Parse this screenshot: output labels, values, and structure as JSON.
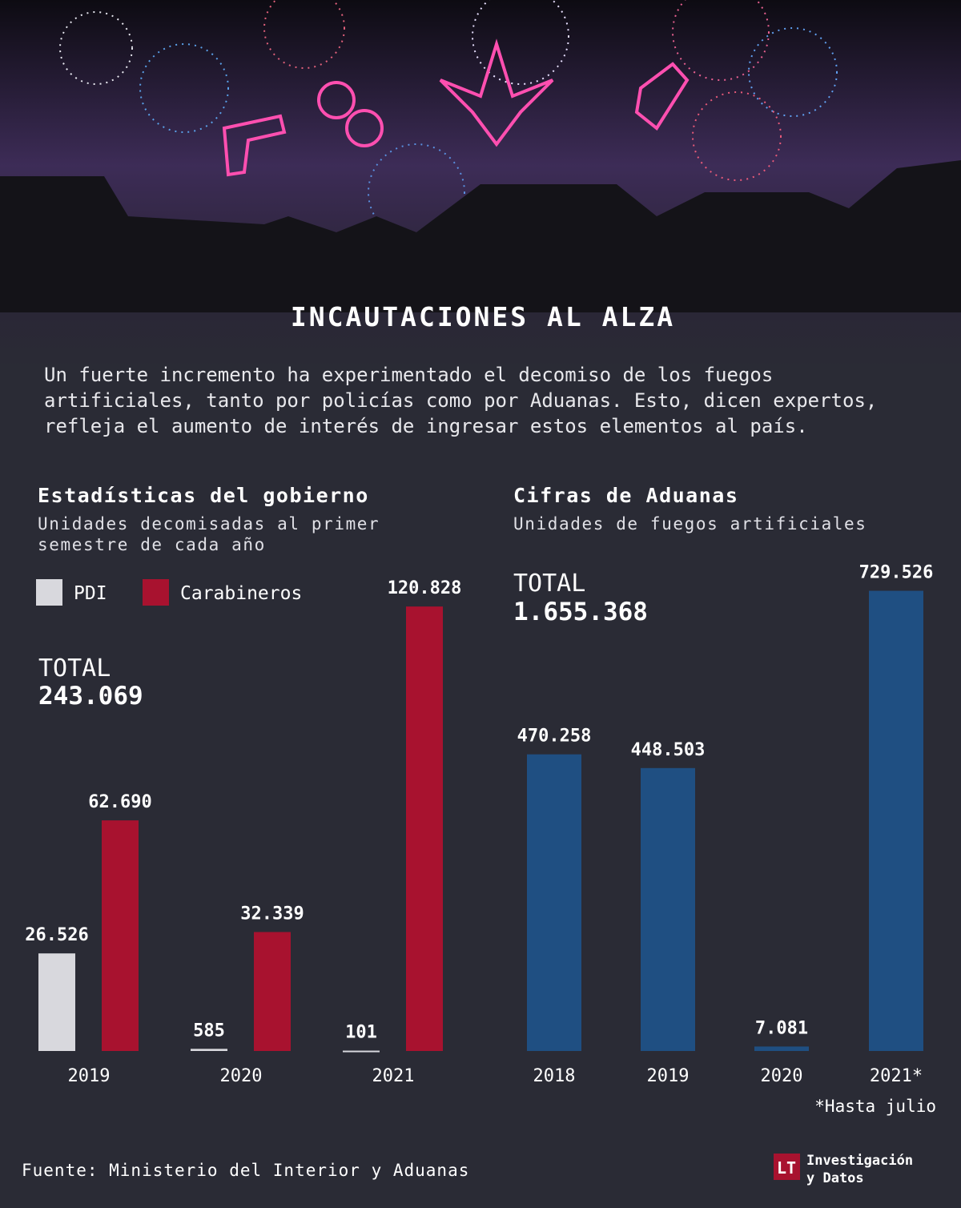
{
  "header": {
    "title": "INCAUTACIONES AL ALZA",
    "intro": "Un fuerte incremento ha experimentado el decomiso de los fuegos artificiales, tanto por policías como por Aduanas. Esto, dicen expertos, refleja el aumento de interés de ingresar estos elementos al país."
  },
  "chart_data": [
    {
      "type": "bar",
      "title": "Estadísticas del gobierno",
      "subtitle": "Unidades decomisadas al primer semestre de cada año",
      "total_label": "TOTAL",
      "total": "243.069",
      "categories": [
        "2019",
        "2020",
        "2021"
      ],
      "series": [
        {
          "name": "PDI",
          "color": "#d8d8dd",
          "values": [
            26526,
            585,
            101
          ],
          "value_labels": [
            "26.526",
            "585",
            "101"
          ]
        },
        {
          "name": "Carabineros",
          "color": "#a8122f",
          "values": [
            62690,
            32339,
            120828
          ],
          "value_labels": [
            "62.690",
            "32.339",
            "120.828"
          ]
        }
      ],
      "ylim": [
        0,
        130000
      ]
    },
    {
      "type": "bar",
      "title": "Cifras de Aduanas",
      "subtitle": "Unidades de fuegos artificiales",
      "total_label": "TOTAL",
      "total": "1.655.368",
      "categories": [
        "2018",
        "2019",
        "2020",
        "2021*"
      ],
      "values": [
        470258,
        448503,
        7081,
        729526
      ],
      "value_labels": [
        "470.258",
        "448.503",
        "7.081",
        "729.526"
      ],
      "color": "#1f4f82",
      "ylim": [
        0,
        800000
      ],
      "note": "*Hasta julio"
    }
  ],
  "footer": {
    "source": "Fuente: Ministerio del Interior y Aduanas",
    "logo": "LT",
    "brand_line1": "Investigación",
    "brand_line2": "y Datos"
  }
}
